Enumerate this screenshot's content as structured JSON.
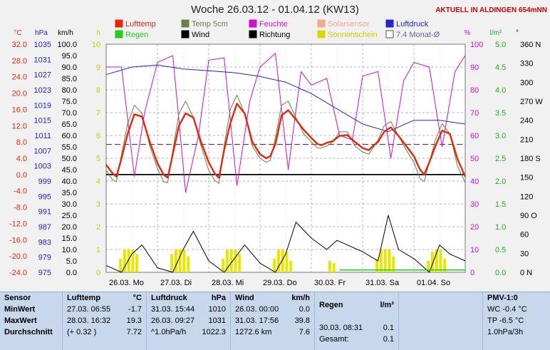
{
  "title": "Woche 26.03.12 - 01.04.12 (KW13)",
  "station": "AKTUELL IN ALDINGEN 654mNN",
  "colors": {
    "lufttemp": "#e02a10",
    "temp5cm": "#6e7d45",
    "feuchte": "#cc10cc",
    "solar": "#f4a890",
    "luftdruck": "#2424cc",
    "regen": "#22cc22",
    "wind": "#000000",
    "richtung": "#000000",
    "sonne": "#d8d800",
    "monat": "#6666aa"
  },
  "legend": [
    {
      "key": "lufttemp",
      "label": "Lufttemp",
      "color": "#e02a10"
    },
    {
      "key": "temp5cm",
      "label": "Temp 5cm",
      "color": "#6e7d45"
    },
    {
      "key": "feuchte",
      "label": "Feuchte",
      "color": "#cc10cc"
    },
    {
      "key": "solar",
      "label": "Solarsensor",
      "color": "#f4a890"
    },
    {
      "key": "luftdruck",
      "label": "Luftdruck",
      "color": "#2424cc"
    },
    {
      "key": "regen",
      "label": "Regen",
      "color": "#22cc22"
    },
    {
      "key": "wind",
      "label": "Wind",
      "color": "#000000"
    },
    {
      "key": "richtung",
      "label": "Richtung",
      "color": "#000000"
    },
    {
      "key": "sonne",
      "label": "Sonnenschein",
      "color": "#d8d800"
    },
    {
      "key": "monat",
      "label": "7.4 Monat-Ø",
      "color": "#6666aa"
    }
  ],
  "chart_data": {
    "type": "line",
    "grid": true,
    "x_labels": [
      "26.03. Mo",
      "27.03. Di",
      "28.03. Mi",
      "29.03. Do",
      "30.03. Fr",
      "31.03. Sa",
      "01.04. So"
    ],
    "axes": {
      "celsius": {
        "unit": "°C",
        "ticks": [
          "32.0",
          "28.0",
          "24.0",
          "20.0",
          "16.0",
          "12.0",
          "8.0",
          "4.0",
          "0.0",
          "-4.0",
          "-8.0",
          "-12.0",
          "-16.0",
          "-20.0",
          "-24.0"
        ],
        "range": [
          -24,
          32
        ]
      },
      "hpa": {
        "unit": "hPa",
        "ticks": [
          "1035",
          "1031",
          "1027",
          "1023",
          "1019",
          "1015",
          "1011",
          "1007",
          "1003",
          "999",
          "995",
          "991",
          "987",
          "983",
          "979",
          "975"
        ],
        "range": [
          975,
          1035
        ]
      },
      "kmh": {
        "unit": "km/h",
        "ticks": [
          "100.0",
          "95.0",
          "90.0",
          "85.0",
          "80.0",
          "75.0",
          "70.0",
          "65.0",
          "60.0",
          "55.0",
          "50.0",
          "45.0",
          "40.0",
          "35.0",
          "30.0",
          "25.0",
          "20.0",
          "15.0",
          "10.0",
          "5.0",
          "0.0"
        ],
        "range": [
          0,
          100
        ]
      },
      "hours": {
        "unit": "h",
        "ticks": [
          "10",
          "9",
          "8",
          "7",
          "6",
          "5",
          "4",
          "3",
          "2",
          "1",
          "0"
        ],
        "range": [
          0,
          10
        ]
      },
      "percent": {
        "unit": "%",
        "ticks": [
          "100",
          "90",
          "80",
          "70",
          "60",
          "50",
          "40",
          "30",
          "20",
          "10",
          "0"
        ],
        "range": [
          0,
          100
        ]
      },
      "rain": {
        "unit": "l/m²",
        "ticks": [
          "5.0",
          "4.5",
          "4.0",
          "3.5",
          "3.0",
          "2.5",
          "2.0",
          "1.5",
          "1.0",
          "0.5",
          "0.0"
        ],
        "range": [
          0,
          5
        ]
      },
      "direction": {
        "unit": "°",
        "ticks": [
          "360 N",
          "330",
          "300",
          "270 W",
          "240",
          "210",
          "180 S",
          "150",
          "120",
          "90 O",
          "60",
          "30",
          "0 N"
        ],
        "range": [
          0,
          360
        ]
      }
    },
    "monthly_avg_c": 7.4,
    "series": [
      {
        "name": "Lufttemp",
        "axis": "celsius",
        "x": [
          0,
          0.12,
          0.2,
          0.3,
          0.42,
          0.55,
          0.7,
          0.85,
          1,
          1.12,
          1.2,
          1.3,
          1.42,
          1.55,
          1.7,
          1.85,
          2,
          2.12,
          2.2,
          2.3,
          2.42,
          2.55,
          2.7,
          2.85,
          3,
          3.12,
          3.2,
          3.3,
          3.42,
          3.55,
          3.7,
          3.85,
          4,
          4.12,
          4.2,
          4.3,
          4.42,
          4.55,
          4.7,
          4.85,
          5,
          5.12,
          5.2,
          5.3,
          5.42,
          5.55,
          5.7,
          5.85,
          6,
          6.12,
          6.2,
          6.3,
          6.42,
          6.55,
          6.7,
          6.85,
          7
        ],
        "values": [
          2.4,
          0.4,
          -0.5,
          4,
          10,
          14.8,
          14.2,
          8,
          2.8,
          0,
          -0.8,
          5,
          12,
          15,
          14,
          8,
          3,
          0.2,
          -0.8,
          6,
          12.5,
          17.4,
          15,
          8,
          5,
          4,
          4.5,
          7.5,
          14.5,
          15.8,
          13.5,
          11,
          9,
          7.5,
          7.2,
          7.8,
          8.2,
          9.5,
          9.7,
          8,
          6.5,
          6,
          7,
          8,
          10.5,
          11.6,
          9.5,
          7,
          4.5,
          1.2,
          0,
          3,
          7,
          10.8,
          10,
          3.8,
          -0.5
        ]
      },
      {
        "name": "Temp 5cm",
        "axis": "celsius",
        "x": [
          0,
          0.12,
          0.2,
          0.3,
          0.42,
          0.55,
          0.7,
          0.85,
          1,
          1.12,
          1.2,
          1.3,
          1.42,
          1.55,
          1.7,
          1.85,
          2,
          2.12,
          2.2,
          2.3,
          2.42,
          2.55,
          2.7,
          2.85,
          3,
          3.12,
          3.2,
          3.3,
          3.42,
          3.55,
          3.7,
          3.85,
          4,
          4.12,
          4.2,
          4.3,
          4.42,
          4.55,
          4.7,
          4.85,
          5,
          5.12,
          5.2,
          5.3,
          5.42,
          5.55,
          5.7,
          5.85,
          6,
          6.12,
          6.2,
          6.3,
          6.42,
          6.55,
          6.7,
          6.85,
          7
        ],
        "values": [
          1,
          -1.2,
          -1.8,
          5,
          12.5,
          17,
          15,
          7,
          1.5,
          -1.8,
          -2,
          6,
          15,
          18,
          14,
          7,
          1,
          -1.5,
          -2.2,
          7,
          16,
          19.5,
          15,
          7,
          4,
          3,
          3.5,
          9,
          17,
          18,
          14,
          10,
          8,
          6.5,
          6.5,
          7,
          8,
          10.5,
          10.5,
          7,
          5.5,
          5,
          6.5,
          8.5,
          12,
          13,
          9.5,
          6,
          3,
          -1,
          -1.8,
          3,
          8.5,
          12.5,
          10,
          2,
          -2
        ]
      },
      {
        "name": "Feuchte",
        "axis": "percent",
        "x": [
          0,
          0.3,
          0.55,
          0.75,
          1,
          1.3,
          1.55,
          1.8,
          2,
          2.3,
          2.55,
          2.8,
          3,
          3.3,
          3.55,
          3.8,
          4,
          4.3,
          4.55,
          4.8,
          5,
          5.3,
          5.55,
          5.8,
          6,
          6.3,
          6.55,
          6.8,
          7
        ],
        "values": [
          90,
          90,
          42,
          70,
          92,
          95,
          35,
          60,
          93,
          94,
          38,
          75,
          90,
          96,
          45,
          88,
          82,
          85,
          60,
          58,
          86,
          88,
          50,
          84,
          92,
          90,
          55,
          88,
          95
        ]
      },
      {
        "name": "Luftdruck",
        "axis": "hpa",
        "x": [
          0,
          0.5,
          1,
          1.5,
          2,
          2.5,
          3,
          3.5,
          4,
          4.5,
          5,
          5.5,
          6,
          6.5,
          7
        ],
        "values": [
          1027,
          1029,
          1029.5,
          1028.5,
          1028,
          1027.5,
          1026.5,
          1025,
          1022,
          1018,
          1014,
          1012,
          1015,
          1015,
          1014
        ]
      },
      {
        "name": "Wind",
        "axis": "kmh",
        "x": [
          0,
          0.3,
          0.5,
          0.7,
          1,
          1.3,
          1.5,
          1.7,
          2,
          2.3,
          2.5,
          2.7,
          3,
          3.3,
          3.5,
          3.7,
          4,
          4.3,
          4.5,
          4.7,
          5,
          5.3,
          5.5,
          5.7,
          6,
          6.3,
          6.5,
          6.7,
          7
        ],
        "values": [
          3,
          0,
          8,
          12,
          2,
          0,
          10,
          18,
          5,
          0,
          6,
          12,
          4,
          0,
          8,
          22,
          15,
          10,
          14,
          12,
          9,
          5,
          25,
          10,
          6,
          0,
          12,
          8,
          5
        ]
      },
      {
        "name": "Sonnenschein",
        "axis": "hours",
        "x": [
          0.28,
          0.36,
          0.44,
          0.52,
          0.6,
          1.28,
          1.36,
          1.44,
          1.52,
          1.6,
          2.28,
          2.36,
          2.44,
          2.52,
          2.6,
          3.28,
          3.36,
          3.44,
          3.52,
          3.6,
          4.36,
          4.44,
          5.28,
          5.36,
          5.44,
          5.52,
          5.6,
          6.28,
          6.36,
          6.44,
          6.52,
          6.6
        ],
        "values": [
          0.6,
          1,
          1,
          1,
          0.8,
          0.8,
          1,
          1,
          1,
          0.7,
          0.6,
          1,
          1,
          1,
          0.8,
          0.6,
          1,
          1,
          0.9,
          0.5,
          0.5,
          0.4,
          0.6,
          1,
          1,
          1,
          0.7,
          0.5,
          0.9,
          1,
          1,
          0.6
        ]
      }
    ]
  },
  "table": {
    "row_labels": [
      "Sensor",
      "MinWert",
      "MaxWert",
      "Durchschnitt"
    ],
    "lufttemp": {
      "header": "Lufttemp",
      "unit": "°C",
      "rows": [
        {
          "time": "27.03.  06:55",
          "value": "-1.7"
        },
        {
          "time": "28.03.  16:32",
          "value": "19.3"
        },
        {
          "time": "(+ 0.32 )",
          "value": "7.72"
        }
      ]
    },
    "luftdruck": {
      "header": "Luftdruck",
      "unit": "hPa",
      "rows": [
        {
          "time": "31.03.  15:44",
          "value": "1010"
        },
        {
          "time": "26.03.  09:27",
          "value": "1031"
        },
        {
          "time": "^1.0hPa/h",
          "value": "1022.3"
        }
      ]
    },
    "wind": {
      "header": "Wind",
      "unit": "km/h",
      "rows": [
        {
          "time": "26.03.  00:00",
          "value": "0.0"
        },
        {
          "time": "31.03.  17:56",
          "value": "39.8"
        },
        {
          "time": "1272.6 km",
          "value": "7.6"
        }
      ]
    },
    "regen": {
      "header": "Regen",
      "unit": "l/m²",
      "rows": [
        {
          "time": "30.03.  08:31",
          "value": "0.1"
        },
        {
          "time": "Gesamt:",
          "value": "0.1"
        }
      ]
    },
    "pmv": {
      "header": "PMV-1:0",
      "lines": [
        "WC -0.4 °C",
        "TP -6.5 °C",
        "1.0hPa/3h"
      ]
    }
  }
}
